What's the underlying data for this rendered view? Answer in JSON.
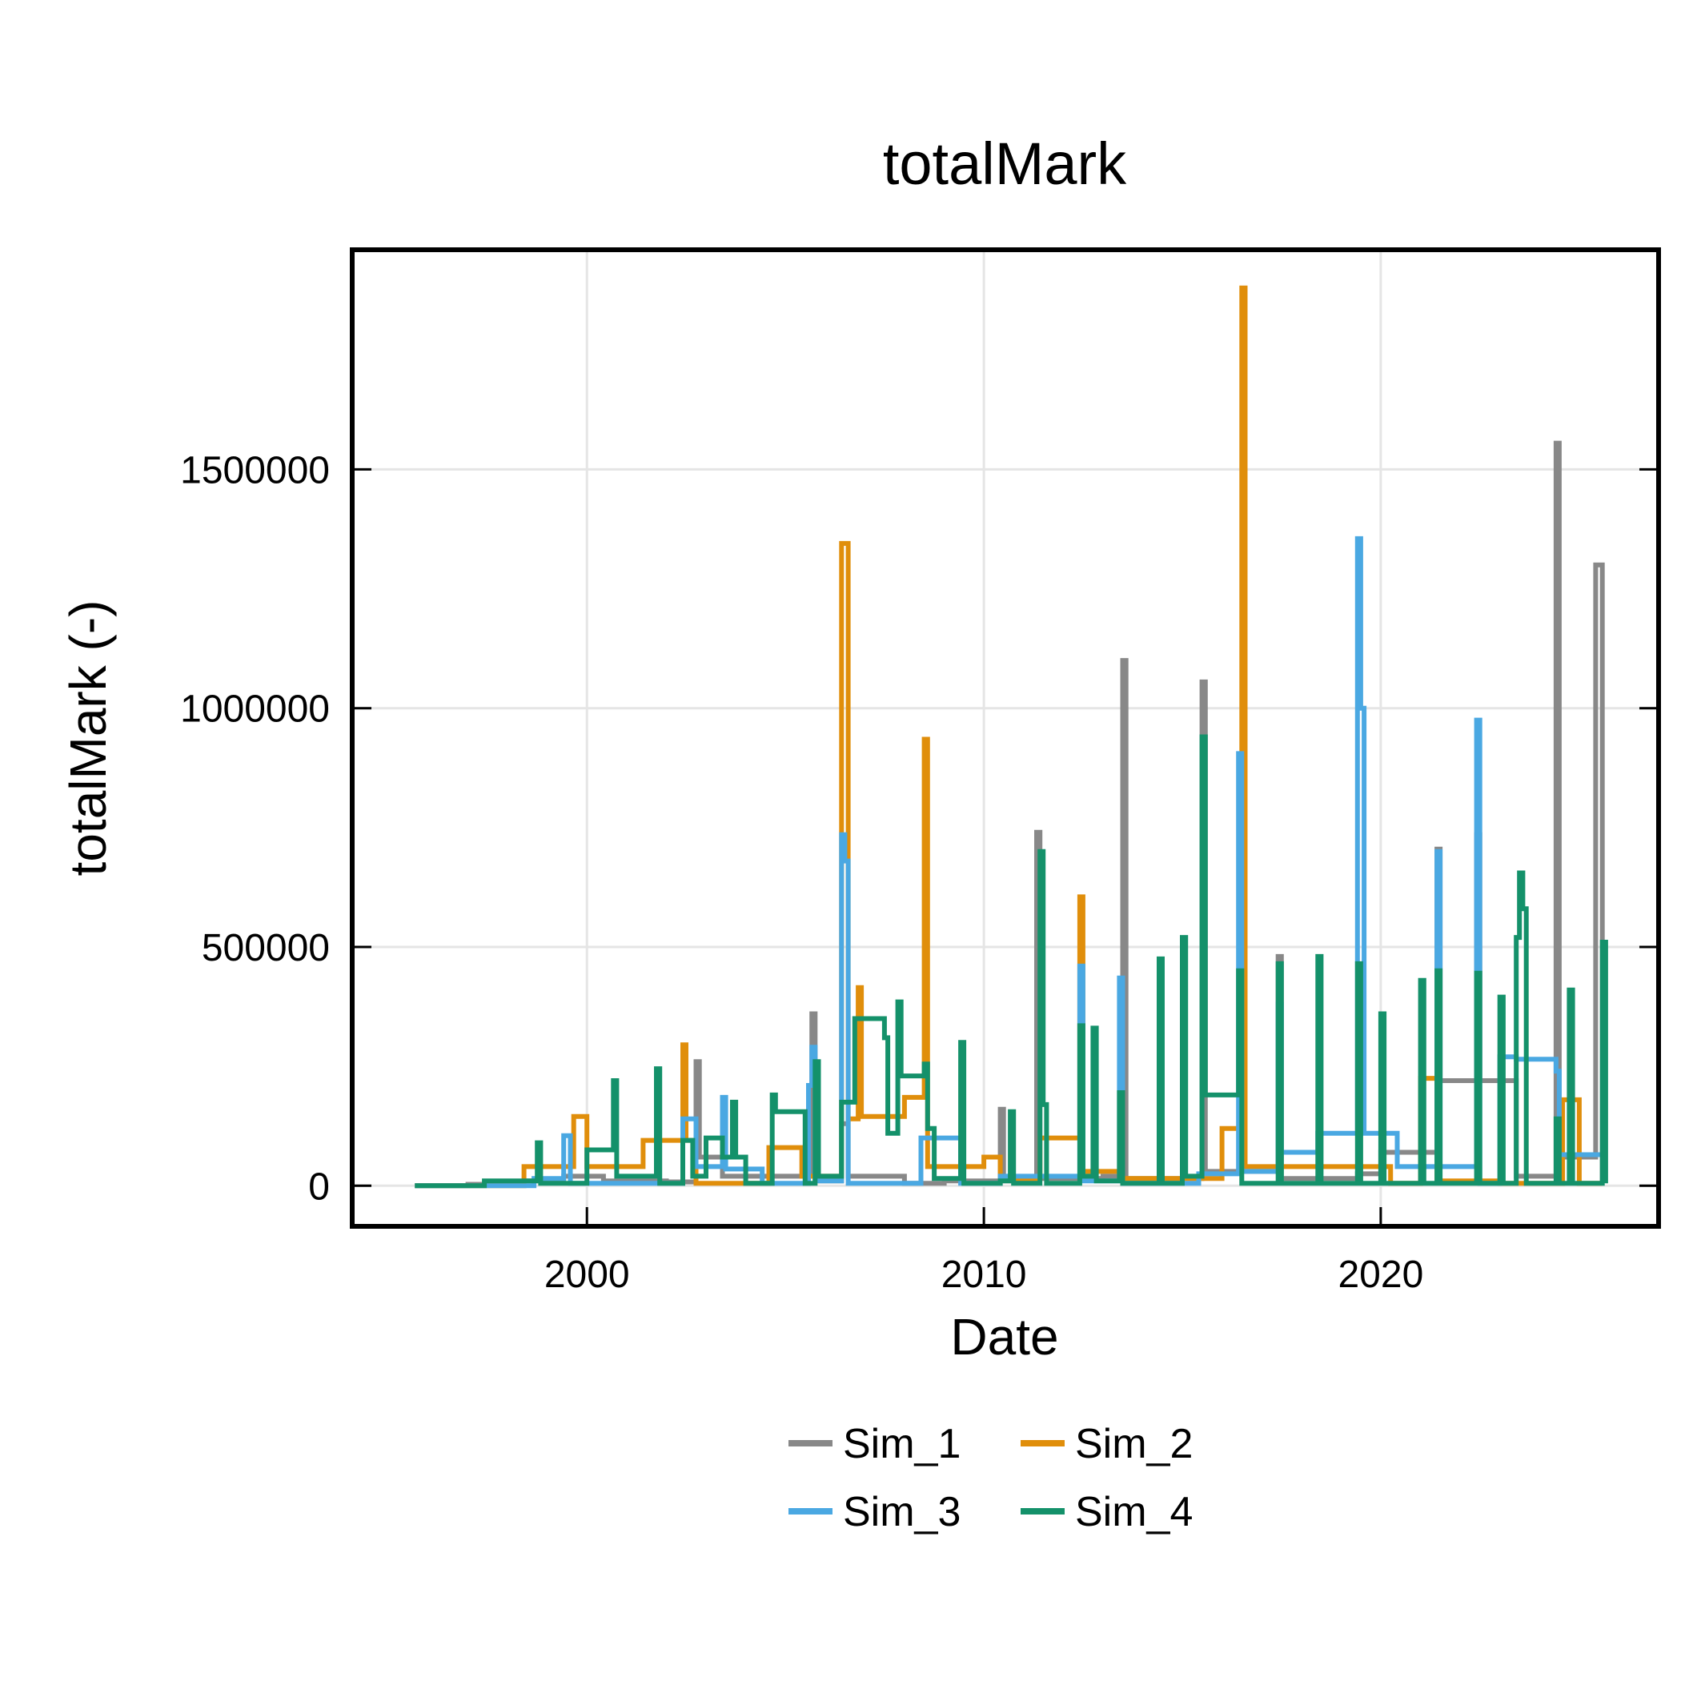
{
  "chart_data": {
    "type": "line",
    "title": "totalMark",
    "xlabel": "Date",
    "ylabel": "totalMark (-)",
    "xlim": [
      "1994-02-01",
      "2027-01-01"
    ],
    "ylim": [
      -85000,
      1960000
    ],
    "x_ticks": [
      {
        "date": "2000-01-01",
        "label": "2000"
      },
      {
        "date": "2010-01-01",
        "label": "2010"
      },
      {
        "date": "2020-01-01",
        "label": "2020"
      }
    ],
    "y_ticks": [
      {
        "value": 0,
        "label": "0"
      },
      {
        "value": 500000,
        "label": "500000"
      },
      {
        "value": 1000000,
        "label": "1000000"
      },
      {
        "value": 1500000,
        "label": "1500000"
      }
    ],
    "grid": true,
    "legend": {
      "position": "bottom",
      "columns": 2
    },
    "series": [
      {
        "name": "Sim_1",
        "color": "#888888",
        "points": [
          [
            "1995-09-01",
            0
          ],
          [
            "1997-01-01",
            3000
          ],
          [
            "1998-06-01",
            10000
          ],
          [
            "1999-06-01",
            20000
          ],
          [
            "2000-06-01",
            10000
          ],
          [
            "2002-01-01",
            8000
          ],
          [
            "2002-10-01",
            260000
          ],
          [
            "2002-11-01",
            60000
          ],
          [
            "2003-06-01",
            20000
          ],
          [
            "2005-09-01",
            360000
          ],
          [
            "2005-10-01",
            10000
          ],
          [
            "2006-06-01",
            130000
          ],
          [
            "2006-08-01",
            20000
          ],
          [
            "2008-01-01",
            5000
          ],
          [
            "2009-01-01",
            10000
          ],
          [
            "2010-06-01",
            160000
          ],
          [
            "2010-07-01",
            10000
          ],
          [
            "2011-05-01",
            740000
          ],
          [
            "2011-06-01",
            15000
          ],
          [
            "2013-01-01",
            20000
          ],
          [
            "2013-07-01",
            1100000
          ],
          [
            "2013-08-01",
            15000
          ],
          [
            "2015-07-01",
            1055000
          ],
          [
            "2015-08-01",
            30000
          ],
          [
            "2017-01-01",
            30000
          ],
          [
            "2017-06-01",
            480000
          ],
          [
            "2017-07-01",
            15000
          ],
          [
            "2019-06-01",
            25000
          ],
          [
            "2020-01-01",
            70000
          ],
          [
            "2021-06-01",
            705000
          ],
          [
            "2021-07-01",
            220000
          ],
          [
            "2022-06-01",
            735000
          ],
          [
            "2022-07-01",
            220000
          ],
          [
            "2023-06-01",
            20000
          ],
          [
            "2024-06-01",
            1555000
          ],
          [
            "2024-07-01",
            60000
          ],
          [
            "2025-06-01",
            1300000
          ],
          [
            "2025-08-01",
            10000
          ]
        ]
      },
      {
        "name": "Sim_2",
        "color": "#E08E0B",
        "points": [
          [
            "1995-09-01",
            0
          ],
          [
            "1998-06-01",
            40000
          ],
          [
            "1999-09-01",
            145000
          ],
          [
            "2000-01-01",
            40000
          ],
          [
            "2001-06-01",
            95000
          ],
          [
            "2002-06-01",
            295000
          ],
          [
            "2002-07-01",
            95000
          ],
          [
            "2002-10-01",
            5000
          ],
          [
            "2004-01-01",
            5000
          ],
          [
            "2004-08-01",
            80000
          ],
          [
            "2005-06-01",
            20000
          ],
          [
            "2006-06-01",
            1345000
          ],
          [
            "2006-08-01",
            140000
          ],
          [
            "2006-11-01",
            415000
          ],
          [
            "2006-12-01",
            145000
          ],
          [
            "2007-06-01",
            145000
          ],
          [
            "2008-01-01",
            185000
          ],
          [
            "2008-07-01",
            935000
          ],
          [
            "2008-08-01",
            40000
          ],
          [
            "2009-06-01",
            40000
          ],
          [
            "2010-01-01",
            60000
          ],
          [
            "2010-06-01",
            15000
          ],
          [
            "2011-06-01",
            100000
          ],
          [
            "2012-06-01",
            605000
          ],
          [
            "2012-07-01",
            30000
          ],
          [
            "2013-06-01",
            15000
          ],
          [
            "2016-01-01",
            120000
          ],
          [
            "2016-07-01",
            1880000
          ],
          [
            "2016-08-01",
            40000
          ],
          [
            "2017-06-01",
            40000
          ],
          [
            "2020-04-01",
            5000
          ],
          [
            "2021-01-01",
            225000
          ],
          [
            "2021-06-01",
            10000
          ],
          [
            "2023-01-01",
            5000
          ],
          [
            "2024-08-01",
            180000
          ],
          [
            "2025-01-01",
            5000
          ],
          [
            "2025-08-01",
            5000
          ]
        ]
      },
      {
        "name": "Sim_3",
        "color": "#4AA8E2",
        "points": [
          [
            "1995-09-01",
            0
          ],
          [
            "1998-09-01",
            15000
          ],
          [
            "1999-06-01",
            105000
          ],
          [
            "1999-08-01",
            5000
          ],
          [
            "2001-06-01",
            5000
          ],
          [
            "2002-06-01",
            140000
          ],
          [
            "2002-10-01",
            40000
          ],
          [
            "2003-06-01",
            185000
          ],
          [
            "2003-07-01",
            35000
          ],
          [
            "2004-06-01",
            5000
          ],
          [
            "2005-08-01",
            210000
          ],
          [
            "2005-09-01",
            290000
          ],
          [
            "2005-10-01",
            10000
          ],
          [
            "2006-06-01",
            735000
          ],
          [
            "2006-07-01",
            680000
          ],
          [
            "2006-08-01",
            5000
          ],
          [
            "2007-06-01",
            5000
          ],
          [
            "2008-06-01",
            100000
          ],
          [
            "2009-06-01",
            5000
          ],
          [
            "2010-06-01",
            20000
          ],
          [
            "2012-06-01",
            460000
          ],
          [
            "2012-07-01",
            10000
          ],
          [
            "2013-06-01",
            435000
          ],
          [
            "2013-07-01",
            5000
          ],
          [
            "2015-06-01",
            25000
          ],
          [
            "2016-06-01",
            905000
          ],
          [
            "2016-07-01",
            30000
          ],
          [
            "2017-06-01",
            380000
          ],
          [
            "2017-07-01",
            70000
          ],
          [
            "2018-06-01",
            110000
          ],
          [
            "2019-06-01",
            1355000
          ],
          [
            "2019-07-01",
            1000000
          ],
          [
            "2019-08-01",
            110000
          ],
          [
            "2020-06-01",
            40000
          ],
          [
            "2021-06-01",
            700000
          ],
          [
            "2021-07-01",
            40000
          ],
          [
            "2022-06-01",
            975000
          ],
          [
            "2022-07-01",
            5000
          ],
          [
            "2023-01-01",
            270000
          ],
          [
            "2023-06-01",
            265000
          ],
          [
            "2024-06-01",
            240000
          ],
          [
            "2024-07-01",
            65000
          ],
          [
            "2025-08-01",
            65000
          ]
        ]
      },
      {
        "name": "Sim_4",
        "color": "#14916A",
        "points": [
          [
            "1995-09-01",
            0
          ],
          [
            "1997-06-01",
            10000
          ],
          [
            "1998-10-01",
            90000
          ],
          [
            "1998-11-01",
            5000
          ],
          [
            "1999-06-01",
            5000
          ],
          [
            "2000-01-01",
            75000
          ],
          [
            "2000-06-01",
            75000
          ],
          [
            "2000-09-01",
            220000
          ],
          [
            "2000-10-01",
            20000
          ],
          [
            "2001-10-01",
            245000
          ],
          [
            "2001-11-01",
            5000
          ],
          [
            "2002-06-01",
            95000
          ],
          [
            "2002-09-01",
            20000
          ],
          [
            "2003-01-01",
            100000
          ],
          [
            "2003-06-01",
            60000
          ],
          [
            "2003-09-01",
            175000
          ],
          [
            "2003-10-01",
            60000
          ],
          [
            "2004-01-01",
            5000
          ],
          [
            "2004-09-01",
            190000
          ],
          [
            "2004-10-01",
            155000
          ],
          [
            "2005-06-01",
            155000
          ],
          [
            "2005-07-01",
            5000
          ],
          [
            "2005-10-01",
            260000
          ],
          [
            "2005-11-01",
            20000
          ],
          [
            "2006-06-01",
            175000
          ],
          [
            "2006-10-01",
            350000
          ],
          [
            "2007-06-01",
            350000
          ],
          [
            "2007-07-01",
            310000
          ],
          [
            "2007-08-01",
            110000
          ],
          [
            "2007-11-01",
            385000
          ],
          [
            "2007-12-01",
            230000
          ],
          [
            "2008-06-01",
            230000
          ],
          [
            "2008-07-01",
            255000
          ],
          [
            "2008-08-01",
            120000
          ],
          [
            "2008-10-01",
            15000
          ],
          [
            "2009-06-01",
            300000
          ],
          [
            "2009-07-01",
            5000
          ],
          [
            "2010-06-01",
            10000
          ],
          [
            "2010-09-01",
            155000
          ],
          [
            "2010-10-01",
            5000
          ],
          [
            "2011-06-01",
            700000
          ],
          [
            "2011-07-01",
            170000
          ],
          [
            "2011-08-01",
            5000
          ],
          [
            "2012-06-01",
            335000
          ],
          [
            "2012-07-01",
            20000
          ],
          [
            "2012-10-01",
            330000
          ],
          [
            "2012-11-01",
            10000
          ],
          [
            "2013-06-01",
            195000
          ],
          [
            "2013-07-01",
            5000
          ],
          [
            "2014-06-01",
            475000
          ],
          [
            "2014-07-01",
            5000
          ],
          [
            "2015-01-01",
            520000
          ],
          [
            "2015-02-01",
            20000
          ],
          [
            "2015-07-01",
            940000
          ],
          [
            "2015-08-01",
            190000
          ],
          [
            "2016-01-01",
            190000
          ],
          [
            "2016-06-01",
            450000
          ],
          [
            "2016-07-01",
            5000
          ],
          [
            "2017-06-01",
            465000
          ],
          [
            "2017-07-01",
            5000
          ],
          [
            "2018-06-01",
            480000
          ],
          [
            "2018-07-01",
            5000
          ],
          [
            "2019-06-01",
            465000
          ],
          [
            "2019-07-01",
            5000
          ],
          [
            "2020-01-01",
            360000
          ],
          [
            "2020-02-01",
            5000
          ],
          [
            "2021-01-01",
            430000
          ],
          [
            "2021-02-01",
            5000
          ],
          [
            "2021-06-01",
            450000
          ],
          [
            "2021-07-01",
            5000
          ],
          [
            "2022-06-01",
            445000
          ],
          [
            "2022-07-01",
            5000
          ],
          [
            "2023-01-01",
            395000
          ],
          [
            "2023-02-01",
            5000
          ],
          [
            "2023-06-01",
            520000
          ],
          [
            "2023-07-01",
            655000
          ],
          [
            "2023-08-01",
            580000
          ],
          [
            "2023-09-01",
            5000
          ],
          [
            "2024-06-01",
            140000
          ],
          [
            "2024-07-01",
            5000
          ],
          [
            "2024-10-01",
            410000
          ],
          [
            "2024-11-01",
            5000
          ],
          [
            "2025-08-01",
            510000
          ],
          [
            "2025-09-01",
            5000
          ]
        ]
      }
    ]
  }
}
